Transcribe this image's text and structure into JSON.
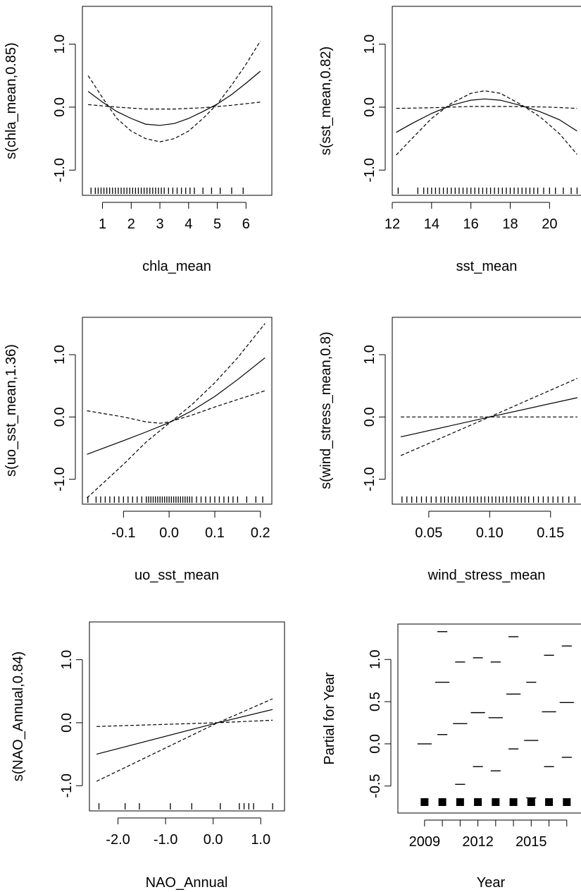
{
  "chart_data": [
    {
      "type": "line",
      "xlabel": "chla_mean",
      "ylabel": "s(chla_mean,0.85)",
      "xlim": [
        0.3,
        6.9
      ],
      "ylim": [
        -1.4,
        1.6
      ],
      "xticks": [
        1,
        2,
        3,
        4,
        5,
        6
      ],
      "xtick_labels": [
        "1",
        "2",
        "3",
        "4",
        "5",
        "6"
      ],
      "yticks": [
        -1.0,
        0.0,
        1.0
      ],
      "ytick_labels": [
        "-1.0",
        "0.0",
        "1.0"
      ],
      "series": [
        {
          "style": "solid",
          "x": [
            0.5,
            1,
            1.5,
            2,
            2.5,
            3,
            3.5,
            4,
            4.5,
            5,
            5.5,
            6,
            6.5
          ],
          "y": [
            0.25,
            0.08,
            -0.07,
            -0.18,
            -0.27,
            -0.29,
            -0.26,
            -0.18,
            -0.07,
            0.05,
            0.2,
            0.38,
            0.57
          ]
        },
        {
          "style": "dashed",
          "x": [
            0.5,
            1,
            1.5,
            2,
            2.5,
            3,
            3.5,
            4,
            4.5,
            5,
            5.5,
            6,
            6.5
          ],
          "y": [
            0.5,
            0.15,
            -0.18,
            -0.38,
            -0.5,
            -0.55,
            -0.5,
            -0.38,
            -0.18,
            0.05,
            0.35,
            0.68,
            1.05
          ]
        },
        {
          "style": "dashed",
          "x": [
            0.5,
            1.5,
            2.5,
            3,
            3.5,
            4.5,
            5.5,
            6.5
          ],
          "y": [
            0.04,
            0.0,
            -0.03,
            -0.03,
            -0.03,
            -0.01,
            0.03,
            0.08
          ]
        }
      ],
      "rug": [
        0.6,
        0.75,
        0.85,
        0.95,
        1.05,
        1.15,
        1.25,
        1.35,
        1.45,
        1.55,
        1.65,
        1.75,
        1.85,
        1.95,
        2.05,
        2.15,
        2.25,
        2.35,
        2.45,
        2.55,
        2.65,
        2.75,
        2.85,
        2.95,
        3.05,
        3.15,
        3.3,
        3.45,
        3.6,
        3.75,
        3.9,
        4.05,
        4.2,
        4.5,
        4.8,
        5.1,
        5.5,
        5.9
      ]
    },
    {
      "type": "line",
      "xlabel": "sst_mean",
      "ylabel": "s(sst_mean,0.82)",
      "xlim": [
        12,
        21.6
      ],
      "ylim": [
        -1.4,
        1.6
      ],
      "xticks": [
        12,
        14,
        16,
        18,
        20
      ],
      "xtick_labels": [
        "12",
        "14",
        "16",
        "18",
        "20"
      ],
      "yticks": [
        -1.0,
        0.0,
        1.0
      ],
      "ytick_labels": [
        "-1.0",
        "0.0",
        "1.0"
      ],
      "series": [
        {
          "style": "solid",
          "x": [
            12.2,
            13,
            14,
            15,
            16,
            16.7,
            17.5,
            18.5,
            19.5,
            20.5,
            21.4
          ],
          "y": [
            -0.4,
            -0.26,
            -0.1,
            0.03,
            0.11,
            0.13,
            0.11,
            0.03,
            -0.07,
            -0.2,
            -0.38
          ]
        },
        {
          "style": "dashed",
          "x": [
            12.2,
            13,
            14,
            15,
            16,
            16.7,
            17.5,
            18.5,
            19.5,
            20.5,
            21.4
          ],
          "y": [
            -0.76,
            -0.5,
            -0.18,
            0.06,
            0.22,
            0.26,
            0.22,
            0.05,
            -0.15,
            -0.42,
            -0.75
          ]
        },
        {
          "style": "dashed",
          "x": [
            12.2,
            14,
            16,
            18,
            20,
            21.4
          ],
          "y": [
            -0.02,
            -0.01,
            0.01,
            0.01,
            0.0,
            -0.02
          ]
        }
      ],
      "rug": [
        12.3,
        13.3,
        13.6,
        13.8,
        14.0,
        14.2,
        14.4,
        14.6,
        14.8,
        15.0,
        15.2,
        15.4,
        15.6,
        15.8,
        16.0,
        16.2,
        16.4,
        16.6,
        16.8,
        17.0,
        17.2,
        17.4,
        17.6,
        17.8,
        18.0,
        18.2,
        18.4,
        18.6,
        18.8,
        19.0,
        19.2,
        19.4,
        19.7,
        20.0,
        20.3,
        20.7,
        21.1,
        21.4
      ]
    },
    {
      "type": "line",
      "xlabel": "uo_sst_mean",
      "ylabel": "s(uo_sst_mean,1.36)",
      "xlim": [
        -0.19,
        0.225
      ],
      "ylim": [
        -1.4,
        1.6
      ],
      "xticks": [
        -0.1,
        0.0,
        0.1,
        0.2
      ],
      "xtick_labels": [
        "-0.1",
        "0.0",
        "0.1",
        "0.2"
      ],
      "yticks": [
        -1.0,
        0.0,
        1.0
      ],
      "ytick_labels": [
        "-1.0",
        "0.0",
        "1.0"
      ],
      "series": [
        {
          "style": "solid",
          "x": [
            -0.18,
            -0.1,
            -0.05,
            0.0,
            0.05,
            0.1,
            0.15,
            0.21
          ],
          "y": [
            -0.6,
            -0.38,
            -0.24,
            -0.09,
            0.1,
            0.33,
            0.6,
            0.95
          ]
        },
        {
          "style": "dashed",
          "x": [
            -0.18,
            -0.1,
            -0.05,
            -0.02,
            0.0,
            0.05,
            0.1,
            0.15,
            0.21
          ],
          "y": [
            0.1,
            0.0,
            -0.08,
            -0.1,
            -0.08,
            0.03,
            0.16,
            0.28,
            0.42
          ]
        },
        {
          "style": "dashed",
          "x": [
            -0.18,
            -0.1,
            -0.05,
            0.0,
            0.05,
            0.1,
            0.15,
            0.21
          ],
          "y": [
            -1.3,
            -0.76,
            -0.4,
            -0.1,
            0.2,
            0.55,
            0.95,
            1.5
          ]
        }
      ],
      "rug": [
        -0.178,
        -0.16,
        -0.15,
        -0.14,
        -0.13,
        -0.12,
        -0.11,
        -0.1,
        -0.09,
        -0.08,
        -0.07,
        -0.06,
        -0.05,
        -0.045,
        -0.04,
        -0.035,
        -0.03,
        -0.025,
        -0.02,
        -0.015,
        -0.01,
        -0.005,
        0.0,
        0.005,
        0.01,
        0.015,
        0.02,
        0.025,
        0.03,
        0.035,
        0.04,
        0.045,
        0.05,
        0.06,
        0.07,
        0.08,
        0.09,
        0.1,
        0.11,
        0.12,
        0.13,
        0.14,
        0.15,
        0.17,
        0.19,
        0.205
      ]
    },
    {
      "type": "line",
      "xlabel": "wind_stress_mean",
      "ylabel": "s(wind_stress_mean,0.8)",
      "xlim": [
        0.02,
        0.175
      ],
      "ylim": [
        -1.4,
        1.6
      ],
      "xticks": [
        0.05,
        0.1,
        0.15
      ],
      "xtick_labels": [
        "0.05",
        "0.10",
        "0.15"
      ],
      "yticks": [
        -1.0,
        0.0,
        1.0
      ],
      "ytick_labels": [
        "-1.0",
        "0.0",
        "1.0"
      ],
      "series": [
        {
          "style": "solid",
          "x": [
            0.027,
            0.1,
            0.172
          ],
          "y": [
            -0.32,
            0.0,
            0.31
          ]
        },
        {
          "style": "dashed",
          "x": [
            0.027,
            0.1,
            0.172
          ],
          "y": [
            -0.62,
            0.0,
            0.62
          ]
        },
        {
          "style": "dashed",
          "x": [
            0.027,
            0.172
          ],
          "y": [
            0.0,
            0.0
          ]
        }
      ],
      "rug": [
        0.028,
        0.032,
        0.036,
        0.04,
        0.044,
        0.048,
        0.052,
        0.056,
        0.06,
        0.063,
        0.066,
        0.069,
        0.072,
        0.075,
        0.078,
        0.081,
        0.084,
        0.087,
        0.09,
        0.093,
        0.096,
        0.099,
        0.102,
        0.105,
        0.108,
        0.111,
        0.114,
        0.117,
        0.12,
        0.123,
        0.126,
        0.129,
        0.132,
        0.136,
        0.14,
        0.144,
        0.148,
        0.152,
        0.156,
        0.16,
        0.165,
        0.17
      ]
    },
    {
      "type": "line",
      "xlabel": "NAO_Annual",
      "ylabel": "s(NAO_Annual,0.84)",
      "xlim": [
        -2.6,
        1.5
      ],
      "ylim": [
        -1.4,
        1.6
      ],
      "xticks": [
        -2.0,
        -1.0,
        0.0,
        1.0
      ],
      "xtick_labels": [
        "-2.0",
        "-1.0",
        "0.0",
        "1.0"
      ],
      "yticks": [
        -1.0,
        0.0,
        1.0
      ],
      "ytick_labels": [
        "-1.0",
        "0.0",
        "1.0"
      ],
      "series": [
        {
          "style": "solid",
          "x": [
            -2.45,
            0.1,
            1.25
          ],
          "y": [
            -0.5,
            0.0,
            0.21
          ]
        },
        {
          "style": "dashed",
          "x": [
            -2.45,
            0.1,
            1.25
          ],
          "y": [
            -0.93,
            0.0,
            0.38
          ]
        },
        {
          "style": "dashed",
          "x": [
            -2.45,
            0.1,
            1.25
          ],
          "y": [
            -0.06,
            0.0,
            0.04
          ]
        }
      ],
      "rug": [
        -2.4,
        -1.85,
        -1.55,
        -0.9,
        -0.45,
        0.15,
        0.55,
        0.65,
        0.75,
        0.85,
        1.25
      ]
    },
    {
      "type": "line",
      "xlabel": "Year",
      "ylabel": "Partial for Year",
      "xlim": [
        2007.5,
        2017.8
      ],
      "ylim": [
        -0.82,
        1.42
      ],
      "xticks": [
        2009,
        2010,
        2011,
        2012,
        2013,
        2014,
        2015,
        2016,
        2017
      ],
      "xtick_labels": [
        "2009",
        "",
        "",
        "2012",
        "",
        "",
        "2015",
        "",
        ""
      ],
      "yticks": [
        -0.5,
        0.0,
        0.5,
        1.0
      ],
      "ytick_labels": [
        "-0.5",
        "0.0",
        "0.5",
        "1.0"
      ],
      "categories": [
        "2009",
        "2010",
        "2011",
        "2012",
        "2013",
        "2014",
        "2015",
        "2016",
        "2017"
      ],
      "series": [
        {
          "name": "",
          "style": "solid",
          "values": [
            0.0,
            0.73,
            0.24,
            0.37,
            0.31,
            0.59,
            0.04,
            0.38,
            0.49
          ]
        },
        {
          "name": "",
          "style": "dashed",
          "values": [
            null,
            1.33,
            0.97,
            1.02,
            0.97,
            1.27,
            0.73,
            1.05,
            1.16
          ]
        },
        {
          "name": "",
          "style": "dashed",
          "values": [
            null,
            0.11,
            -0.48,
            -0.27,
            -0.32,
            -0.06,
            -0.64,
            -0.27,
            -0.16
          ]
        }
      ]
    }
  ]
}
